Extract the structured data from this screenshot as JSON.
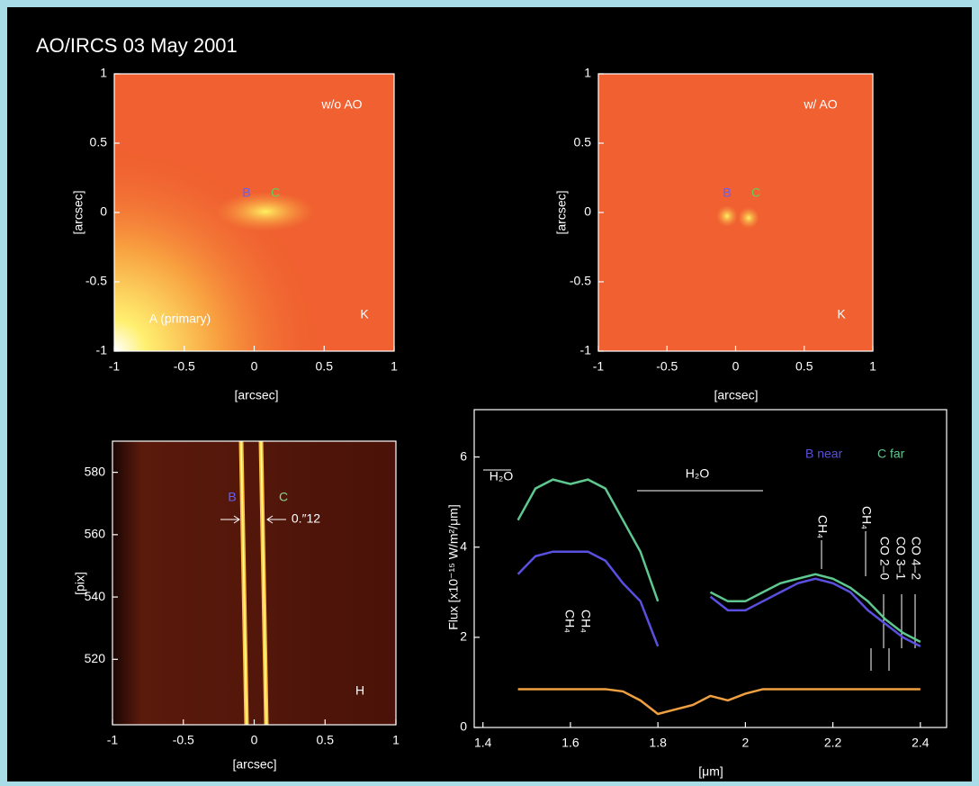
{
  "title": "AO/IRCS 03 May 2001",
  "chart_data": [
    {
      "type": "image",
      "xlabel": "[arcsec]",
      "ylabel": "[arcsec]",
      "xlim": [
        -1,
        1
      ],
      "ylim": [
        -1,
        1
      ],
      "xticks": [
        -1,
        -0.5,
        0,
        0.5,
        1
      ],
      "yticks": [
        -1,
        -0.5,
        0,
        0.5,
        1
      ],
      "annotations": [
        "w/o AO",
        "B",
        "C",
        "A (primary)",
        "K"
      ]
    },
    {
      "type": "image",
      "xlabel": "[arcsec]",
      "ylabel": "[arcsec]",
      "xlim": [
        -1,
        1
      ],
      "ylim": [
        -1,
        1
      ],
      "xticks": [
        -1,
        -0.5,
        0,
        0.5,
        1
      ],
      "yticks": [
        -1,
        -0.5,
        0,
        0.5,
        1
      ],
      "annotations": [
        "w/ AO",
        "B",
        "C",
        "K"
      ]
    },
    {
      "type": "image",
      "xlabel": "[arcsec]",
      "ylabel": "[pix]",
      "xlim": [
        -1,
        1
      ],
      "ylim": [
        499,
        590
      ],
      "xticks": [
        -1,
        -0.5,
        0,
        0.5,
        1
      ],
      "yticks": [
        520,
        540,
        560,
        580
      ],
      "annotations": [
        "B",
        "C",
        "0.″12",
        "H"
      ]
    },
    {
      "type": "line",
      "xlabel": "[μm]",
      "ylabel": "Flux [x10⁻¹⁵ W/m²/μm]",
      "xlim": [
        1.38,
        2.46
      ],
      "ylim": [
        0,
        7.05
      ],
      "xticks": [
        1.4,
        1.6,
        1.8,
        2,
        2.2,
        2.4
      ],
      "yticks": [
        0,
        2,
        4,
        6
      ],
      "x": [
        1.48,
        1.52,
        1.56,
        1.6,
        1.64,
        1.68,
        1.72,
        1.76,
        1.8,
        1.84,
        1.88,
        1.92,
        1.96,
        2.0,
        2.04,
        2.08,
        2.12,
        2.16,
        2.2,
        2.24,
        2.28,
        2.32,
        2.36,
        2.4
      ],
      "series": [
        {
          "name": "B near",
          "color": "#5a50e0",
          "values": [
            3.4,
            3.8,
            3.9,
            3.9,
            3.9,
            3.7,
            3.2,
            2.8,
            1.8,
            null,
            null,
            2.9,
            2.6,
            2.6,
            2.8,
            3.0,
            3.2,
            3.3,
            3.2,
            3.0,
            2.6,
            2.3,
            2.0,
            1.8
          ]
        },
        {
          "name": "C far",
          "color": "#5ec890",
          "values": [
            4.6,
            5.3,
            5.5,
            5.4,
            5.5,
            5.3,
            4.6,
            3.9,
            2.8,
            null,
            null,
            3.0,
            2.8,
            2.8,
            3.0,
            3.2,
            3.3,
            3.4,
            3.3,
            3.1,
            2.8,
            2.4,
            2.1,
            1.9
          ]
        },
        {
          "color": "#f0a040",
          "values": [
            0.85,
            0.85,
            0.85,
            0.85,
            0.85,
            0.85,
            0.8,
            0.6,
            0.3,
            0.4,
            0.5,
            0.7,
            0.6,
            0.75,
            0.85,
            0.85,
            0.85,
            0.85,
            0.85,
            0.85,
            0.85,
            0.85,
            0.85,
            0.85
          ]
        }
      ],
      "annotations": [
        "H₂O",
        "H₂O",
        "CH₄",
        "CH₄",
        "CH₄",
        "CH₄",
        "CO 2–0",
        "CO 3–1",
        "CO 4–2"
      ]
    }
  ]
}
